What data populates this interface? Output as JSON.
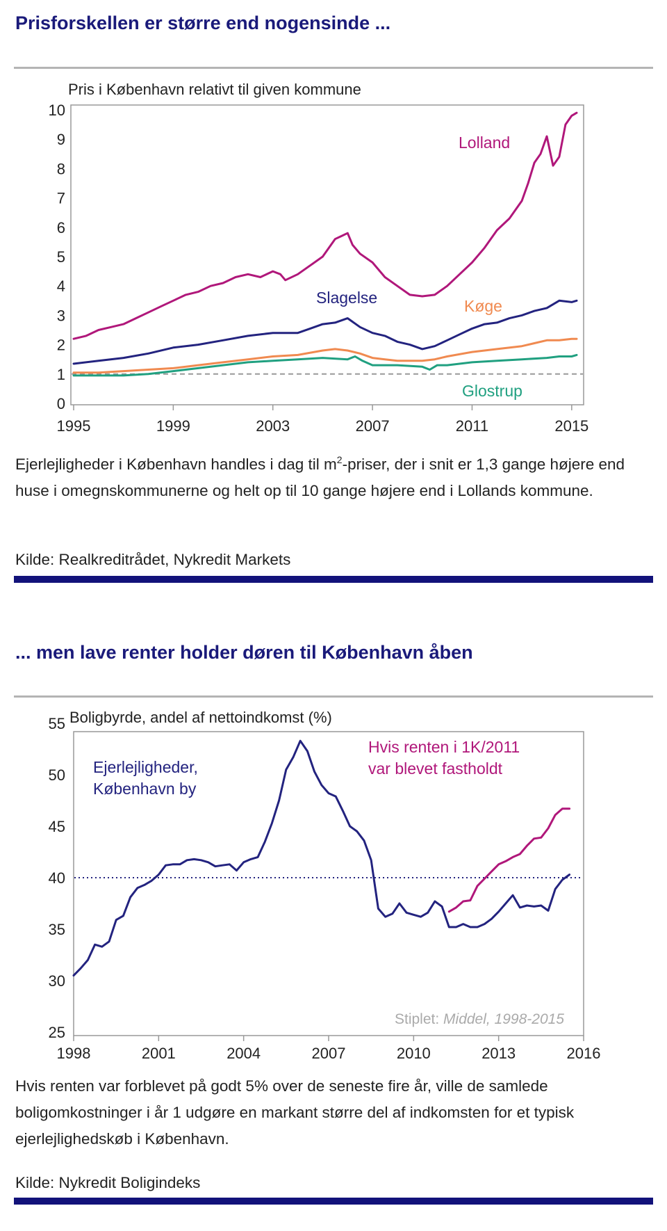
{
  "section1": {
    "heading": "Prisforskellen er større end nogensinde ...",
    "text_before_sup": "Ejerlejligheder i København handles i dag til m",
    "text_sup": "2",
    "text_after_sup": "-priser, der i snit er 1,3 gange højere end huse i omegnskommunerne og helt op til 10 gange højere end i Lollands kommune.",
    "source": "Kilde: Realkreditrådet, Nykredit Markets"
  },
  "section2": {
    "heading": "... men lave renter holder døren til København åben",
    "text": "Hvis renten var forblevet på godt 5% over de seneste fire år, ville de samlede boligomkostninger i år 1 udgøre en markant større del af indkomsten for et typisk ejerlejlighedskøb i København.",
    "source": "Kilde: Nykredit Boligindeks"
  },
  "chart_data": [
    {
      "type": "line",
      "title": "Pris i København relativt til given kommune",
      "xlabel": "",
      "ylabel": "",
      "xlim": [
        1995,
        2015.2
      ],
      "ylim": [
        0,
        10
      ],
      "xticks": [
        1995,
        1999,
        2003,
        2007,
        2011,
        2015
      ],
      "yticks": [
        0,
        1,
        2,
        3,
        4,
        5,
        6,
        7,
        8,
        9,
        10
      ],
      "reference_line": {
        "y": 1,
        "style": "dashed",
        "color": "#999999"
      },
      "series": [
        {
          "name": "Lolland",
          "color": "#b0177a",
          "x": [
            1995,
            1995.5,
            1996,
            1996.5,
            1997,
            1997.5,
            1998,
            1998.5,
            1999,
            1999.5,
            2000,
            2000.5,
            2001,
            2001.5,
            2002,
            2002.5,
            2003,
            2003.3,
            2003.5,
            2004,
            2004.5,
            2005,
            2005.5,
            2005.75,
            2006,
            2006.2,
            2006.5,
            2007,
            2007.5,
            2008,
            2008.5,
            2009,
            2009.5,
            2010,
            2010.5,
            2011,
            2011.5,
            2012,
            2012.5,
            2013,
            2013.25,
            2013.5,
            2013.75,
            2014,
            2014.25,
            2014.5,
            2014.75,
            2015,
            2015.2
          ],
          "values": [
            2.2,
            2.3,
            2.5,
            2.6,
            2.7,
            2.9,
            3.1,
            3.3,
            3.5,
            3.7,
            3.8,
            4.0,
            4.1,
            4.3,
            4.4,
            4.3,
            4.5,
            4.4,
            4.2,
            4.4,
            4.7,
            5.0,
            5.6,
            5.7,
            5.8,
            5.4,
            5.1,
            4.8,
            4.3,
            4.0,
            3.7,
            3.65,
            3.7,
            4.0,
            4.4,
            4.8,
            5.3,
            5.9,
            6.3,
            6.9,
            7.5,
            8.2,
            8.5,
            9.1,
            8.1,
            8.4,
            9.5,
            9.8,
            9.9
          ]
        },
        {
          "name": "Slagelse",
          "color": "#23237f",
          "x": [
            1995,
            1996,
            1997,
            1998,
            1999,
            2000,
            2001,
            2002,
            2003,
            2004,
            2004.5,
            2005,
            2005.5,
            2006,
            2006.5,
            2007,
            2007.5,
            2008,
            2008.5,
            2009,
            2009.5,
            2010,
            2010.5,
            2011,
            2011.5,
            2012,
            2012.5,
            2013,
            2013.5,
            2014,
            2014.5,
            2015,
            2015.2
          ],
          "values": [
            1.35,
            1.45,
            1.55,
            1.7,
            1.9,
            2.0,
            2.15,
            2.3,
            2.4,
            2.4,
            2.55,
            2.7,
            2.75,
            2.9,
            2.6,
            2.4,
            2.3,
            2.1,
            2.0,
            1.85,
            1.95,
            2.15,
            2.35,
            2.55,
            2.7,
            2.75,
            2.9,
            3.0,
            3.15,
            3.25,
            3.5,
            3.45,
            3.5
          ]
        },
        {
          "name": "Køge",
          "color": "#f08a50",
          "x": [
            1995,
            1996,
            1997,
            1998,
            1999,
            2000,
            2001,
            2002,
            2003,
            2004,
            2005,
            2005.5,
            2006,
            2006.5,
            2007,
            2007.5,
            2008,
            2009,
            2009.5,
            2010,
            2011,
            2012,
            2013,
            2013.5,
            2014,
            2014.5,
            2015,
            2015.2
          ],
          "values": [
            1.05,
            1.05,
            1.1,
            1.15,
            1.2,
            1.3,
            1.4,
            1.5,
            1.6,
            1.65,
            1.8,
            1.85,
            1.8,
            1.7,
            1.55,
            1.5,
            1.45,
            1.45,
            1.5,
            1.6,
            1.75,
            1.85,
            1.95,
            2.05,
            2.15,
            2.15,
            2.2,
            2.2
          ]
        },
        {
          "name": "Glostrup",
          "color": "#20a080",
          "x": [
            1995,
            1996,
            1997,
            1998,
            1999,
            2000,
            2001,
            2002,
            2003,
            2004,
            2005,
            2006,
            2006.3,
            2006.6,
            2007,
            2008,
            2009,
            2009.3,
            2009.6,
            2010,
            2011,
            2012,
            2013,
            2014,
            2014.5,
            2015,
            2015.2
          ],
          "values": [
            0.95,
            0.95,
            0.95,
            1.0,
            1.1,
            1.2,
            1.3,
            1.4,
            1.45,
            1.5,
            1.55,
            1.5,
            1.6,
            1.45,
            1.3,
            1.3,
            1.25,
            1.15,
            1.3,
            1.3,
            1.4,
            1.45,
            1.5,
            1.55,
            1.6,
            1.6,
            1.65
          ]
        }
      ],
      "labels": [
        "Lolland",
        "Slagelse",
        "Køge",
        "Glostrup"
      ]
    },
    {
      "type": "line",
      "title": "Boligbyrde, andel af nettoindkomst (%)",
      "xlabel": "",
      "ylabel": "",
      "xlim": [
        1998,
        2016
      ],
      "ylim": [
        25,
        55
      ],
      "xticks": [
        1998,
        2001,
        2004,
        2007,
        2010,
        2013,
        2016
      ],
      "yticks": [
        25,
        30,
        35,
        40,
        45,
        50,
        55
      ],
      "reference_line": {
        "y": 40,
        "style": "dotted",
        "color": "#23237f"
      },
      "note_prefix": "Stiplet: ",
      "note_italic": "Middel, 1998-2015",
      "series": [
        {
          "name": "Ejerlejligheder, København by",
          "color": "#23237f",
          "x": [
            1998,
            1998.25,
            1998.5,
            1998.75,
            1999,
            1999.25,
            1999.5,
            1999.75,
            2000,
            2000.25,
            2000.5,
            2000.75,
            2001,
            2001.25,
            2001.5,
            2001.75,
            2002,
            2002.25,
            2002.5,
            2002.75,
            2003,
            2003.25,
            2003.5,
            2003.75,
            2004,
            2004.25,
            2004.5,
            2004.75,
            2005,
            2005.25,
            2005.5,
            2005.75,
            2006,
            2006.25,
            2006.5,
            2006.75,
            2007,
            2007.25,
            2007.5,
            2007.75,
            2008,
            2008.25,
            2008.5,
            2008.75,
            2009,
            2009.25,
            2009.5,
            2009.75,
            2010,
            2010.25,
            2010.5,
            2010.75,
            2011,
            2011.25,
            2011.5,
            2011.75,
            2012,
            2012.25,
            2012.5,
            2012.75,
            2013,
            2013.25,
            2013.5,
            2013.75,
            2014,
            2014.25,
            2014.5,
            2014.75,
            2015,
            2015.25,
            2015.5
          ],
          "values": [
            30.5,
            31.2,
            32.0,
            33.5,
            33.3,
            33.8,
            35.9,
            36.3,
            38.1,
            39.0,
            39.3,
            39.7,
            40.3,
            41.2,
            41.3,
            41.3,
            41.7,
            41.8,
            41.7,
            41.5,
            41.1,
            41.2,
            41.3,
            40.7,
            41.5,
            41.8,
            42.0,
            43.5,
            45.3,
            47.5,
            50.5,
            51.7,
            53.3,
            52.3,
            50.3,
            49.0,
            48.2,
            47.9,
            46.5,
            45.0,
            44.5,
            43.6,
            41.7,
            37.0,
            36.2,
            36.5,
            37.5,
            36.6,
            36.4,
            36.2,
            36.6,
            37.7,
            37.2,
            35.2,
            35.2,
            35.5,
            35.2,
            35.2,
            35.5,
            36.0,
            36.7,
            37.5,
            38.3,
            37.1,
            37.3,
            37.2,
            37.3,
            36.8,
            38.9,
            39.8,
            40.3
          ]
        },
        {
          "name": "Hvis renten i 1K/2011 var blevet fastholdt",
          "color": "#b0177a",
          "x": [
            2011.25,
            2011.5,
            2011.75,
            2012,
            2012.25,
            2012.5,
            2012.75,
            2013,
            2013.25,
            2013.5,
            2013.75,
            2014,
            2014.25,
            2014.5,
            2014.75,
            2015,
            2015.25,
            2015.5
          ],
          "values": [
            36.7,
            37.1,
            37.7,
            37.8,
            39.2,
            39.9,
            40.6,
            41.3,
            41.6,
            42.0,
            42.3,
            43.1,
            43.8,
            43.9,
            44.8,
            46.1,
            46.7,
            46.7
          ]
        }
      ],
      "labels": [
        "Ejerlejligheder,",
        "København by",
        "Hvis renten i 1K/2011",
        "var blevet fastholdt"
      ]
    }
  ]
}
